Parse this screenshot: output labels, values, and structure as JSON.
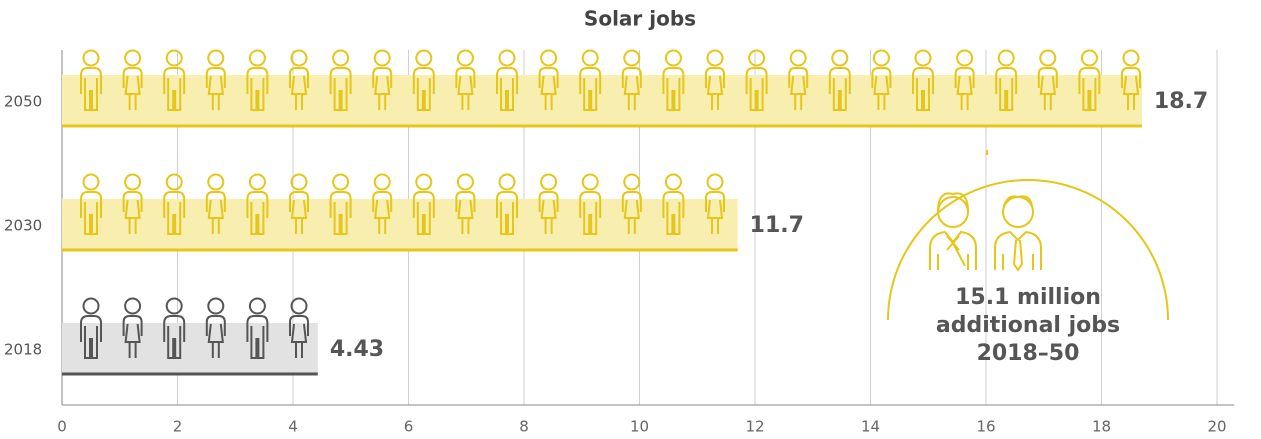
{
  "chart_data": {
    "type": "bar",
    "orientation": "horizontal",
    "title": "Solar jobs",
    "categories": [
      "2050",
      "2030",
      "2018"
    ],
    "values": [
      18.7,
      11.7,
      4.43
    ],
    "colors": [
      "#e6c619",
      "#e6c619",
      "#555555"
    ],
    "fill_colors": [
      "#f7eeb0",
      "#f7eeb0",
      "#e2e2e2"
    ],
    "xlim": [
      0,
      20.3
    ],
    "xticks": [
      0,
      2,
      4,
      6,
      8,
      10,
      12,
      14,
      16,
      18,
      20
    ],
    "grid": true,
    "annotation": [
      "15.1 million",
      "additional jobs",
      "2018–50"
    ]
  }
}
